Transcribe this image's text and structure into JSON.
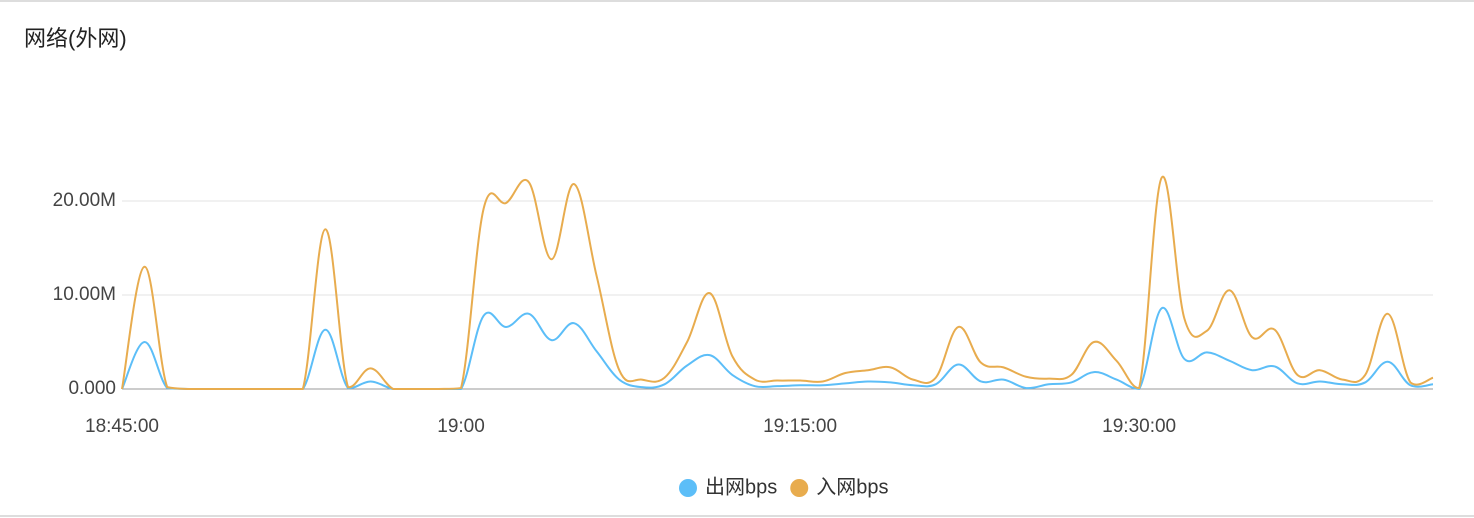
{
  "chart_data": {
    "type": "line",
    "title": "网络(外网)",
    "categories": [
      "18:45:00",
      null,
      null,
      null,
      null,
      null,
      null,
      null,
      null,
      null,
      null,
      null,
      null,
      null,
      null,
      "19:00",
      null,
      null,
      null,
      null,
      null,
      null,
      null,
      null,
      null,
      null,
      null,
      null,
      null,
      null,
      "19:15:00",
      null,
      null,
      null,
      null,
      null,
      null,
      null,
      null,
      null,
      null,
      null,
      null,
      null,
      null,
      "19:30:00",
      null,
      null,
      null,
      null,
      null,
      null,
      null,
      null,
      null,
      null,
      null,
      null,
      null
    ],
    "series": [
      {
        "name": "出网bps",
        "color": "#5cbef8",
        "values": [
          0,
          5,
          0.1,
          0,
          0,
          0,
          0,
          0,
          0,
          6.3,
          0.1,
          0.8,
          0,
          0,
          0,
          0,
          7.8,
          6.6,
          8,
          5.2,
          7,
          4,
          1,
          0.2,
          0.5,
          2.5,
          3.6,
          1.5,
          0.3,
          0.3,
          0.4,
          0.4,
          0.6,
          0.8,
          0.7,
          0.4,
          0.5,
          2.6,
          0.8,
          1,
          0.1,
          0.5,
          0.7,
          1.8,
          1,
          0,
          8.6,
          3.2,
          3.9,
          3,
          2,
          2.4,
          0.6,
          0.8,
          0.5,
          0.7,
          2.9,
          0.4,
          0.5
        ]
      },
      {
        "name": "入网bps",
        "color": "#e8ac4e",
        "values": [
          0,
          13,
          0.2,
          0,
          0,
          0,
          0,
          0,
          0,
          17,
          0.2,
          2.2,
          0,
          0,
          0,
          0.1,
          19.2,
          19.8,
          22,
          13.8,
          21.8,
          12,
          2,
          1,
          1.2,
          5,
          10.2,
          3.5,
          1,
          0.9,
          0.9,
          0.8,
          1.7,
          2,
          2.3,
          1,
          1.2,
          6.6,
          2.8,
          2.3,
          1.3,
          1.1,
          1.5,
          5,
          3,
          0.1,
          22.5,
          7.5,
          6.2,
          10.5,
          5.5,
          6.3,
          1.5,
          2,
          1,
          1.5,
          8,
          0.7,
          1.2
        ]
      }
    ],
    "ylim": [
      0,
      30
    ],
    "yticks": [
      {
        "value": 0,
        "label": "0.000"
      },
      {
        "value": 10,
        "label": "10.00M"
      },
      {
        "value": 20,
        "label": "20.00M"
      }
    ],
    "grid": true,
    "legend": "bottom"
  }
}
